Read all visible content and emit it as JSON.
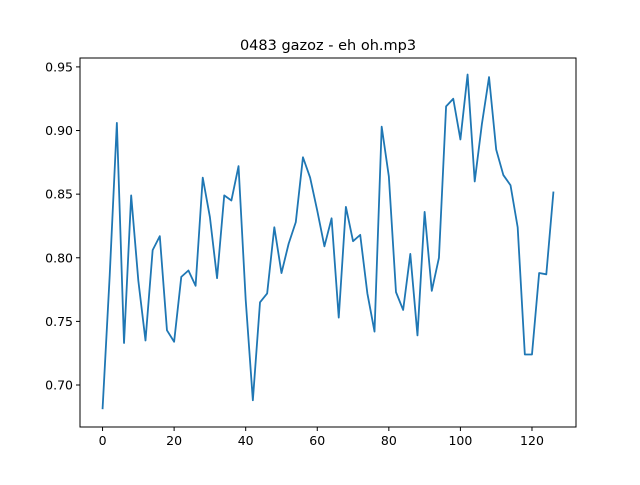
{
  "chart_data": {
    "type": "line",
    "title": "0483 gazoz - eh oh.mp3",
    "xlabel": "",
    "ylabel": "",
    "xlim": [
      -6.3,
      132.3
    ],
    "ylim": [
      0.667,
      0.957
    ],
    "xticks": [
      0,
      20,
      40,
      60,
      80,
      100,
      120
    ],
    "xtick_labels": [
      "0",
      "20",
      "40",
      "60",
      "80",
      "100",
      "120"
    ],
    "yticks": [
      0.7,
      0.75,
      0.8,
      0.85,
      0.9,
      0.95
    ],
    "ytick_labels": [
      "0.70",
      "0.75",
      "0.80",
      "0.85",
      "0.90",
      "0.95"
    ],
    "grid": false,
    "line_color": "#1f77b4",
    "series": [
      {
        "x": [
          0,
          2,
          4,
          6,
          8,
          10,
          12,
          14,
          16,
          18,
          20,
          22,
          24,
          26,
          28,
          30,
          32,
          34,
          36,
          38,
          40,
          42,
          44,
          46,
          48,
          50,
          52,
          54,
          56,
          58,
          60,
          62,
          64,
          66,
          68,
          70,
          72,
          74,
          76,
          78,
          80,
          82,
          84,
          86,
          88,
          90,
          92,
          94,
          96,
          98,
          100,
          102,
          104,
          106,
          108,
          110,
          112,
          114,
          116,
          118,
          120,
          122,
          124,
          126
        ],
        "values": [
          0.681,
          0.786,
          0.906,
          0.733,
          0.849,
          0.782,
          0.735,
          0.806,
          0.817,
          0.743,
          0.734,
          0.785,
          0.79,
          0.778,
          0.863,
          0.832,
          0.784,
          0.849,
          0.845,
          0.872,
          0.767,
          0.688,
          0.765,
          0.772,
          0.824,
          0.788,
          0.811,
          0.828,
          0.879,
          0.863,
          0.837,
          0.809,
          0.831,
          0.753,
          0.84,
          0.813,
          0.818,
          0.772,
          0.742,
          0.903,
          0.864,
          0.773,
          0.759,
          0.803,
          0.739,
          0.836,
          0.774,
          0.8,
          0.919,
          0.925,
          0.893,
          0.944,
          0.86,
          0.905,
          0.942,
          0.885,
          0.865,
          0.857,
          0.824,
          0.724,
          0.724,
          0.788,
          0.787,
          0.852
        ]
      }
    ]
  }
}
